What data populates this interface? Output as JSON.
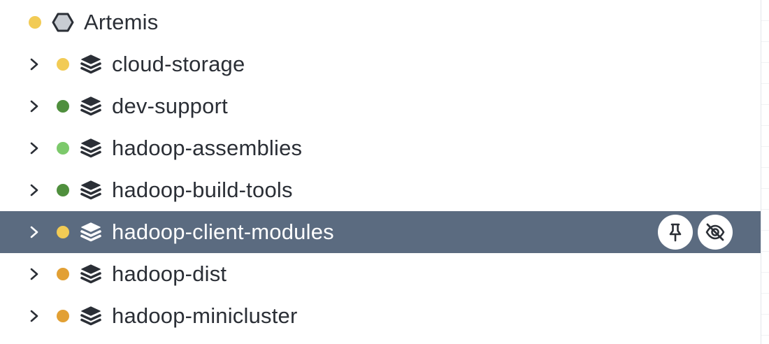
{
  "tree": {
    "root": {
      "label": "Artemis",
      "status_color": "#f2cb55",
      "icon": "hexagon-icon"
    },
    "items": [
      {
        "label": "cloud-storage",
        "status_color": "#f2cb55",
        "icon": "layers-icon",
        "selected": false
      },
      {
        "label": "dev-support",
        "status_color": "#4f8f3d",
        "icon": "layers-icon",
        "selected": false
      },
      {
        "label": "hadoop-assemblies",
        "status_color": "#7cc96b",
        "icon": "layers-icon",
        "selected": false
      },
      {
        "label": "hadoop-build-tools",
        "status_color": "#4f8f3d",
        "icon": "layers-icon",
        "selected": false
      },
      {
        "label": "hadoop-client-modules",
        "status_color": "#f2cb55",
        "icon": "layers-icon",
        "selected": true
      },
      {
        "label": "hadoop-dist",
        "status_color": "#e2a034",
        "icon": "layers-icon",
        "selected": false
      },
      {
        "label": "hadoop-minicluster",
        "status_color": "#e2a034",
        "icon": "layers-icon",
        "selected": false
      }
    ],
    "selected_actions": [
      {
        "icon": "pin-icon"
      },
      {
        "icon": "eye-off-icon"
      }
    ],
    "colors": {
      "selected_bg": "#5b6b80",
      "text": "#2b2f36",
      "icon": "#2b2f36"
    }
  }
}
